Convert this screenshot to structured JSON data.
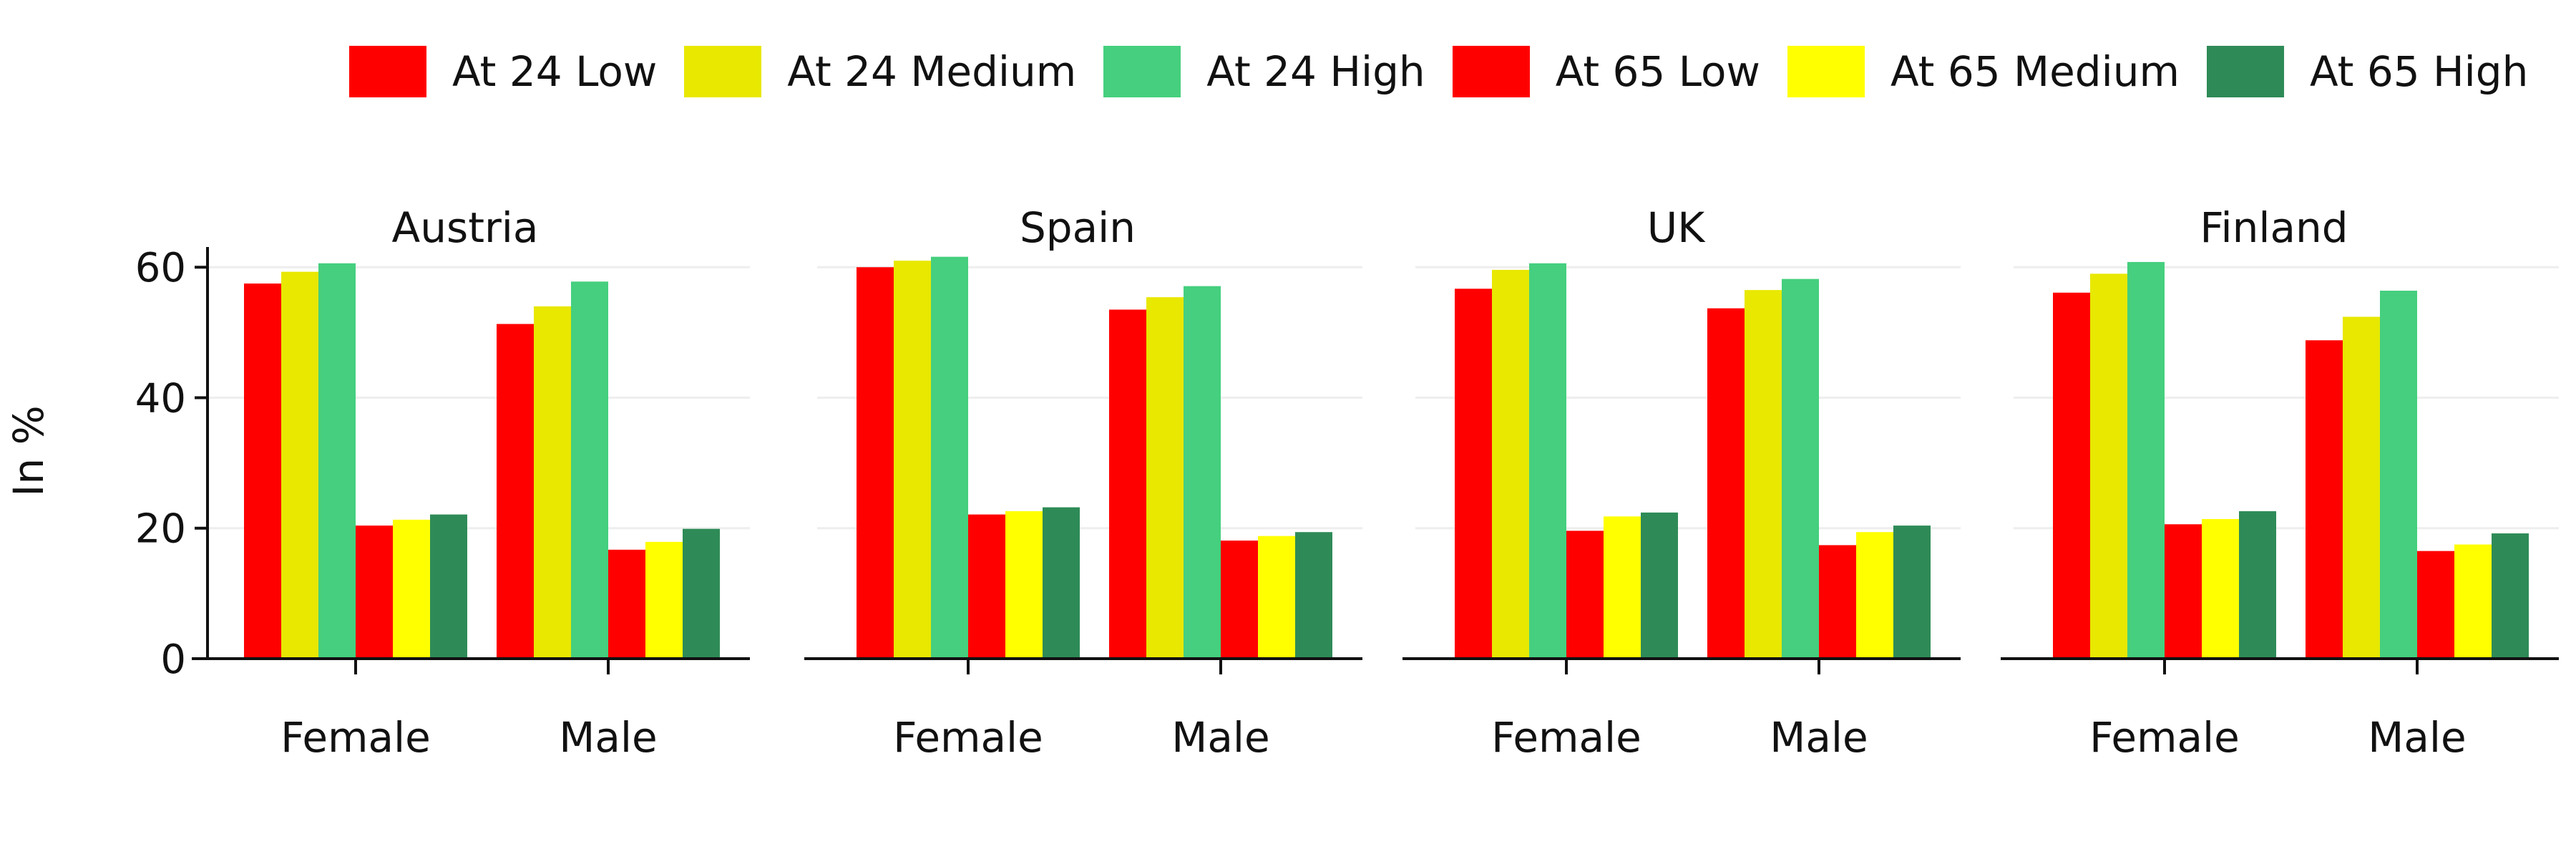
{
  "chart_data": {
    "type": "bar",
    "ylabel": "In %",
    "ylim": [
      0,
      62
    ],
    "yticks": [
      0,
      20,
      40,
      60
    ],
    "grid": "horizontal",
    "legend_placement": "top",
    "categories": [
      "Female",
      "Male"
    ],
    "series": [
      {
        "name": "At 24 Low",
        "color": "#ff0000"
      },
      {
        "name": "At 24 Medium",
        "color": "#e8e800"
      },
      {
        "name": "At 24 High",
        "color": "#45cf7e"
      },
      {
        "name": "At 65 Low",
        "color": "#ff0000"
      },
      {
        "name": "At 65 Medium",
        "color": "#ffff00"
      },
      {
        "name": "At 65 High",
        "color": "#2e8b57"
      }
    ],
    "panels": [
      {
        "title": "Austria",
        "values": [
          [
            57.5,
            51.3
          ],
          [
            59.3,
            54.0
          ],
          [
            60.6,
            57.8
          ],
          [
            20.4,
            16.7
          ],
          [
            21.3,
            17.9
          ],
          [
            22.1,
            19.9
          ]
        ]
      },
      {
        "title": "Spain",
        "values": [
          [
            60.0,
            53.5
          ],
          [
            61.0,
            55.4
          ],
          [
            61.6,
            57.1
          ],
          [
            22.1,
            18.1
          ],
          [
            22.6,
            18.8
          ],
          [
            23.2,
            19.4
          ]
        ]
      },
      {
        "title": "UK",
        "values": [
          [
            56.7,
            53.7
          ],
          [
            59.6,
            56.5
          ],
          [
            60.6,
            58.2
          ],
          [
            19.6,
            17.4
          ],
          [
            21.8,
            19.4
          ],
          [
            22.4,
            20.4
          ]
        ]
      },
      {
        "title": "Finland",
        "values": [
          [
            56.1,
            48.8
          ],
          [
            59.0,
            52.4
          ],
          [
            60.8,
            56.4
          ],
          [
            20.6,
            16.5
          ],
          [
            21.4,
            17.5
          ],
          [
            22.6,
            19.2
          ]
        ]
      }
    ]
  }
}
